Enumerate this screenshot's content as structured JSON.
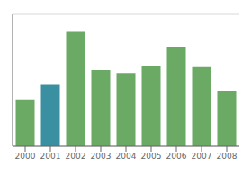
{
  "chart_data": {
    "type": "bar",
    "categories": [
      "2000",
      "2001",
      "2002",
      "2003",
      "2004",
      "2005",
      "2006",
      "2007",
      "2008"
    ],
    "values": [
      32,
      42,
      78,
      52,
      50,
      55,
      68,
      54,
      38
    ],
    "colors": [
      "#6aaa64",
      "#3a8fa0",
      "#6aaa64",
      "#6aaa64",
      "#6aaa64",
      "#6aaa64",
      "#6aaa64",
      "#6aaa64",
      "#6aaa64"
    ],
    "ylim": [
      0,
      90
    ],
    "yticks": [
      0,
      20,
      40,
      60,
      80
    ],
    "grid": true,
    "tick_labels": "x"
  }
}
